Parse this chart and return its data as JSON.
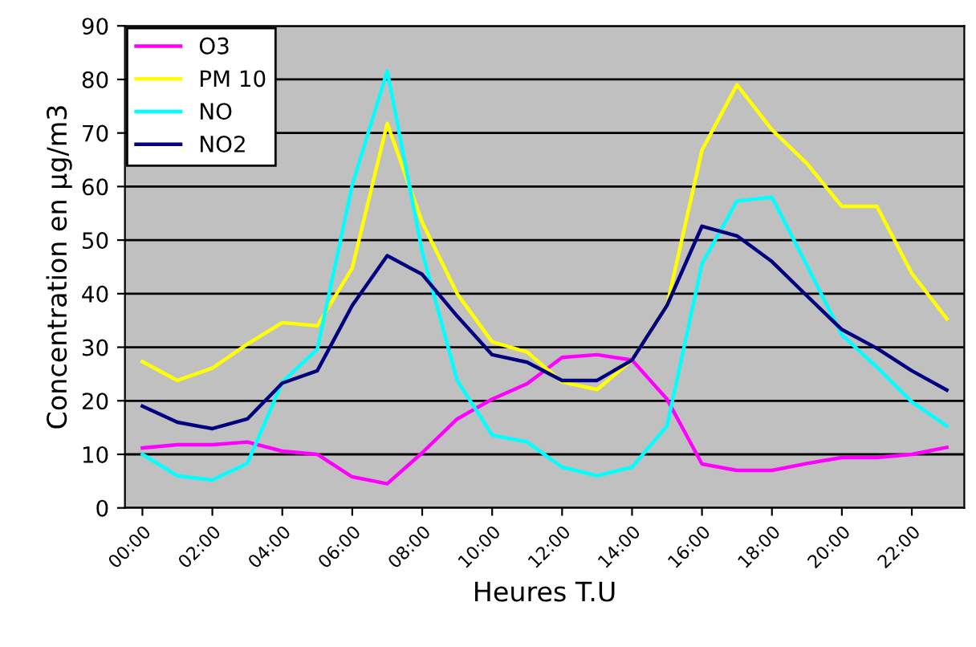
{
  "chart_data": {
    "type": "line",
    "xlabel": "Heures T.U",
    "ylabel": "Concentration en µg/m3",
    "categories": [
      "00:00",
      null,
      "02:00",
      null,
      "04:00",
      null,
      "06:00",
      null,
      "08:00",
      null,
      "10:00",
      null,
      "12:00",
      null,
      "14:00",
      null,
      "16:00",
      null,
      "18:00",
      null,
      "20:00",
      null,
      "22:00",
      null
    ],
    "series": [
      {
        "name": "O3",
        "color": "#ff00ff",
        "values": [
          11.2,
          11.8,
          11.8,
          12.3,
          10.6,
          10,
          5.8,
          4.5,
          10.3,
          16.6,
          20.3,
          23.2,
          28.1,
          28.6,
          27.6,
          20.3,
          8.2,
          7,
          7,
          8.3,
          9.4,
          9.4,
          10,
          11.3
        ]
      },
      {
        "name": "PM 10",
        "color": "#ffff00",
        "values": [
          27.3,
          23.8,
          26.1,
          30.6,
          34.6,
          34,
          44.8,
          71.8,
          53.3,
          40,
          31,
          29.1,
          23.5,
          22.1,
          27.6,
          37.8,
          66.8,
          79,
          70.6,
          64.3,
          56.3,
          56.3,
          43.8,
          35.3
        ]
      },
      {
        "name": "NO",
        "color": "#00ffff",
        "values": [
          10,
          6,
          5.2,
          8.3,
          23.5,
          29.6,
          60.3,
          81.6,
          47.8,
          23.8,
          13.6,
          12.3,
          7.6,
          6,
          7.6,
          15.3,
          45.6,
          57.3,
          58,
          45.3,
          32.3,
          26.3,
          19.8,
          15.3
        ]
      },
      {
        "name": "NO2",
        "color": "#000080",
        "values": [
          19,
          16,
          14.8,
          16.6,
          23.3,
          25.6,
          37.8,
          47.1,
          43.6,
          35.8,
          28.6,
          27.2,
          23.8,
          23.8,
          27.6,
          37.8,
          52.6,
          50.8,
          46,
          39.6,
          33.3,
          29.8,
          25.6,
          22
        ]
      }
    ],
    "ylim": [
      0,
      90
    ],
    "yticks": [
      0,
      10,
      20,
      30,
      40,
      50,
      60,
      70,
      80,
      90
    ],
    "grid": "y",
    "legend": "top left",
    "marker": "none",
    "line_style": "solid"
  }
}
